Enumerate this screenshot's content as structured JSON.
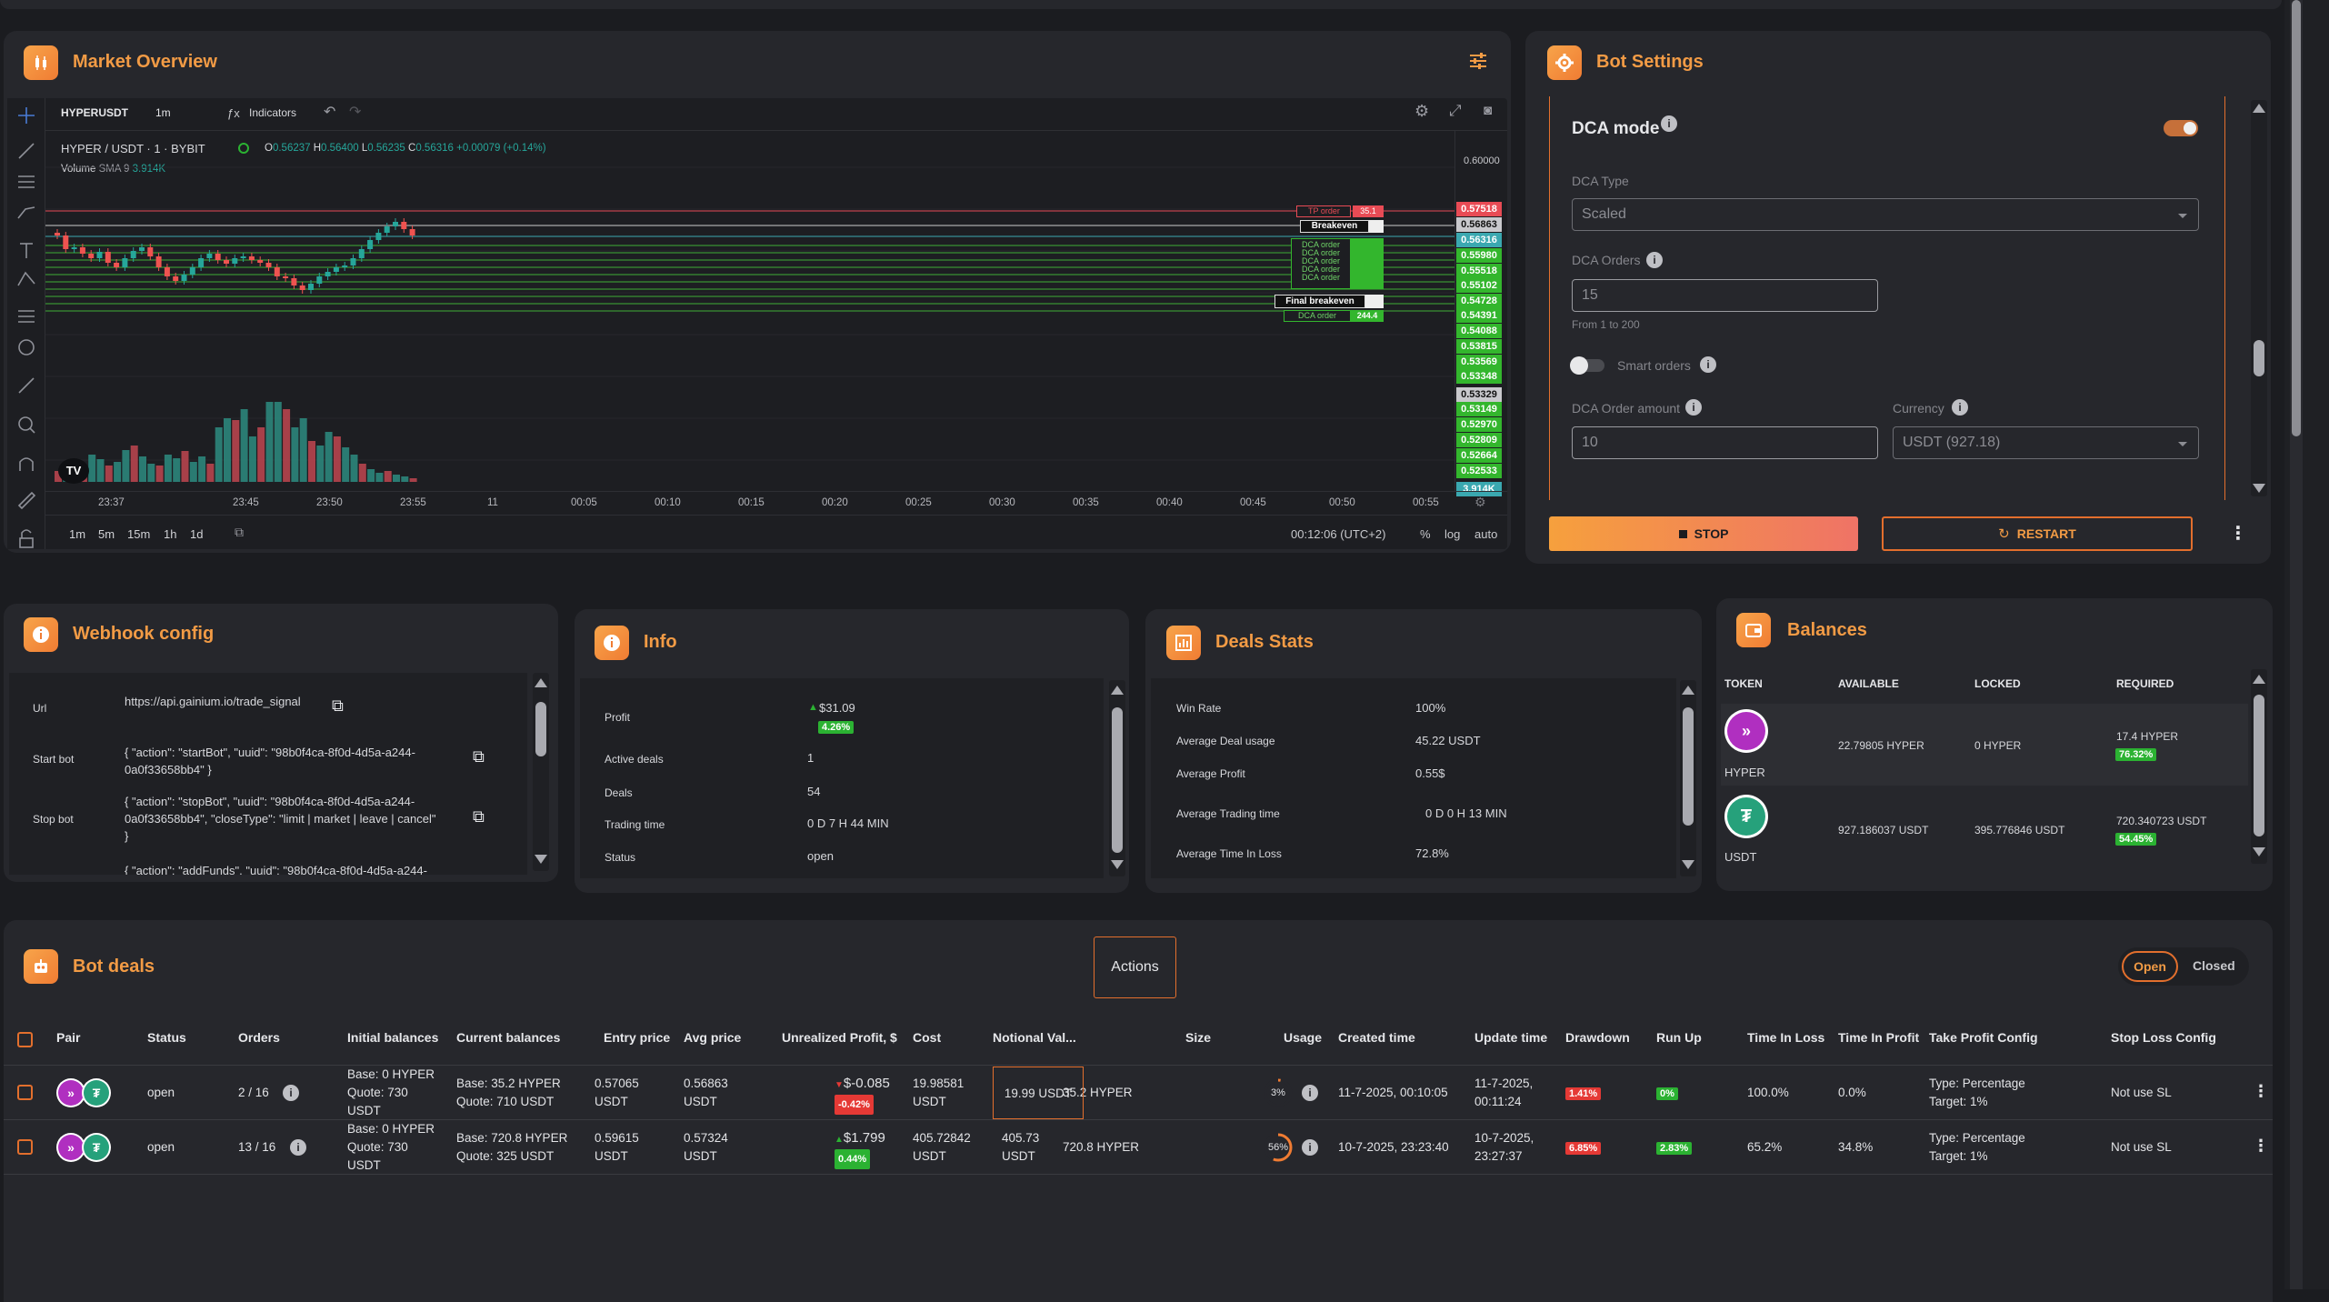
{
  "market": {
    "title": "Market Overview",
    "symbol": "HYPERUSDT",
    "interval": "1m",
    "indicators_label": "Indicators",
    "legend_pair": "HYPER / USDT · 1 · BYBIT",
    "ohlc": {
      "o_label": "O",
      "o": "0.56237",
      "h_label": "H",
      "h": "0.56400",
      "l_label": "L",
      "l": "0.56235",
      "c_label": "C",
      "c": "0.56316",
      "change": "+0.00079 (+0.14%)"
    },
    "volume_label": "Volume",
    "volume_sma": "SMA 9",
    "volume_value": "3.914K",
    "price_ticks": [
      "0.60000"
    ],
    "price_tags": [
      {
        "value": "0.57518",
        "color": "#e84b55"
      },
      {
        "value": "0.56863",
        "color": "#c9c9cd"
      },
      {
        "value": "0.56316",
        "color": "#3aa8b0"
      },
      {
        "value": "0.55980",
        "color": "#33b62d"
      },
      {
        "value": "0.55518",
        "color": "#33b62d"
      },
      {
        "value": "0.55102",
        "color": "#33b62d"
      },
      {
        "value": "0.54728",
        "color": "#33b62d"
      },
      {
        "value": "0.54391",
        "color": "#33b62d"
      },
      {
        "value": "0.54088",
        "color": "#33b62d"
      },
      {
        "value": "0.53815",
        "color": "#33b62d"
      },
      {
        "value": "0.53569",
        "color": "#33b62d"
      },
      {
        "value": "0.53348",
        "color": "#33b62d"
      },
      {
        "value": "0.53329",
        "color": "#c9c9cd"
      },
      {
        "value": "0.53149",
        "color": "#33b62d"
      },
      {
        "value": "0.52970",
        "color": "#33b62d"
      },
      {
        "value": "0.52809",
        "color": "#33b62d"
      },
      {
        "value": "0.52664",
        "color": "#33b62d"
      },
      {
        "value": "0.52533",
        "color": "#33b62d"
      },
      {
        "value": "3.914K",
        "color": "#3aa8b0"
      }
    ],
    "order_labels": {
      "tp": "TP order",
      "tp_qty": "35.1",
      "breakeven": "Breakeven",
      "dca": "DCA order",
      "final_breakeven": "Final breakeven",
      "dca_qty": "244.4"
    },
    "time_ticks": [
      "23:37",
      "23:45",
      "23:50",
      "23:55",
      "11",
      "00:05",
      "00:10",
      "00:15",
      "00:20",
      "00:25",
      "00:30",
      "00:35",
      "00:40",
      "00:45",
      "00:50",
      "00:55"
    ],
    "ranges": [
      "1m",
      "5m",
      "15m",
      "1h",
      "1d"
    ],
    "clock": "00:12:06 (UTC+2)",
    "scale_opts": [
      "%",
      "log",
      "auto"
    ]
  },
  "bot_settings": {
    "title": "Bot Settings",
    "dca_mode_label": "DCA mode",
    "dca_type_label": "DCA Type",
    "dca_type_value": "Scaled",
    "dca_orders_label": "DCA Orders",
    "dca_orders_value": "15",
    "dca_orders_hint": "From 1 to 200",
    "smart_orders_label": "Smart orders",
    "dca_amount_label": "DCA Order amount",
    "dca_amount_value": "10",
    "currency_label": "Currency",
    "currency_value": "USDT (927.18)",
    "stop_label": "STOP",
    "restart_label": "RESTART"
  },
  "webhook": {
    "title": "Webhook config",
    "rows": [
      {
        "label": "Url",
        "value": "https://api.gainium.io/trade_signal"
      },
      {
        "label": "Start bot",
        "value": "{ \"action\": \"startBot\", \"uuid\": \"98b0f4ca-8f0d-4d5a-a244-\n0a0f33658bb4\" }"
      },
      {
        "label": "Stop bot",
        "value": "{ \"action\": \"stopBot\", \"uuid\": \"98b0f4ca-8f0d-4d5a-a244-\n0a0f33658bb4\", \"closeType\": \"limit | market | leave | cancel\"\n}"
      },
      {
        "label": "",
        "value": "{ \"action\": \"addFunds\", \"uuid\": \"98b0f4ca-8f0d-4d5a-a244-"
      }
    ]
  },
  "info": {
    "title": "Info",
    "profit_label": "Profit",
    "profit_value": "$31.09",
    "profit_pct": "4.26%",
    "active_label": "Active deals",
    "active_value": "1",
    "deals_label": "Deals",
    "deals_value": "54",
    "trading_time_label": "Trading time",
    "trading_time_value": "0 D 7 H 44 MIN",
    "status_label": "Status",
    "status_value": "open"
  },
  "deals_stats": {
    "title": "Deals Stats",
    "rows": [
      {
        "label": "Win Rate",
        "value": "100%"
      },
      {
        "label": "Average Deal usage",
        "value": "45.22 USDT"
      },
      {
        "label": "Average Profit",
        "value": "0.55$"
      },
      {
        "label": "Average Trading time",
        "value": "0 D 0 H 13 MIN"
      },
      {
        "label": "Average Time In Loss",
        "value": "72.8%"
      }
    ]
  },
  "balances": {
    "title": "Balances",
    "headers": [
      "TOKEN",
      "AVAILABLE",
      "LOCKED",
      "REQUIRED"
    ],
    "rows": [
      {
        "token": "HYPER",
        "available": "22.79805 HYPER",
        "locked": "0 HYPER",
        "required": "17.4 HYPER",
        "pct": "76.32%",
        "icon_color": "#b02fc0"
      },
      {
        "token": "USDT",
        "available": "927.186037 USDT",
        "locked": "395.776846 USDT",
        "required": "720.340723 USDT",
        "pct": "54.45%",
        "icon_color": "#26a17b"
      }
    ]
  },
  "bot_deals": {
    "title": "Bot deals",
    "actions_label": "Actions",
    "filter_open": "Open",
    "filter_closed": "Closed",
    "headers": [
      "Pair",
      "Status",
      "Orders",
      "Initial balances",
      "Current balances",
      "Entry price",
      "Avg price",
      "Unrealized Profit, $",
      "Cost",
      "Notional Val...",
      "Size",
      "Usage",
      "Created time",
      "Update time",
      "Drawdown",
      "Run Up",
      "Time In Loss",
      "Time In Profit",
      "Take Profit Config",
      "Stop Loss Config"
    ],
    "rows": [
      {
        "status": "open",
        "orders": "2 / 16",
        "init1": "Base: 0 HYPER",
        "init2": "Quote: 730",
        "init3": "USDT",
        "cur1": "Base: 35.2 HYPER",
        "cur2": "Quote: 710 USDT",
        "entry1": "0.57065",
        "entry2": "USDT",
        "avg1": "0.56863",
        "avg2": "USDT",
        "upnl": "$-0.085",
        "upnl_pct": "-0.42%",
        "upnl_dir": "down",
        "cost1": "19.98581",
        "cost2": "USDT",
        "notional": "19.99 USDT",
        "notional2": "",
        "size": "35.2 HYPER",
        "usage": "3%",
        "usage_frac": 0.03,
        "created": "11-7-2025, 00:10:05",
        "upd1": "11-7-2025,",
        "upd2": "00:11:24",
        "drawdown": "1.41%",
        "runup": "0%",
        "til": "100.0%",
        "tip": "0.0%",
        "tp1": "Type: Percentage",
        "tp2": "Target: 1%",
        "sl": "Not use SL"
      },
      {
        "status": "open",
        "orders": "13 / 16",
        "init1": "Base: 0 HYPER",
        "init2": "Quote: 730",
        "init3": "USDT",
        "cur1": "Base: 720.8 HYPER",
        "cur2": "Quote: 325 USDT",
        "entry1": "0.59615",
        "entry2": "USDT",
        "avg1": "0.57324",
        "avg2": "USDT",
        "upnl": "$1.799",
        "upnl_pct": "0.44%",
        "upnl_dir": "up",
        "cost1": "405.72842",
        "cost2": "USDT",
        "notional": "405.73",
        "notional2": "USDT",
        "size": "720.8 HYPER",
        "usage": "56%",
        "usage_frac": 0.56,
        "created": "10-7-2025, 23:23:40",
        "upd1": "10-7-2025,",
        "upd2": "23:27:37",
        "drawdown": "6.85%",
        "runup": "2.83%",
        "til": "65.2%",
        "tip": "34.8%",
        "tp1": "Type: Percentage",
        "tp2": "Target: 1%",
        "sl": "Not use SL"
      }
    ]
  }
}
